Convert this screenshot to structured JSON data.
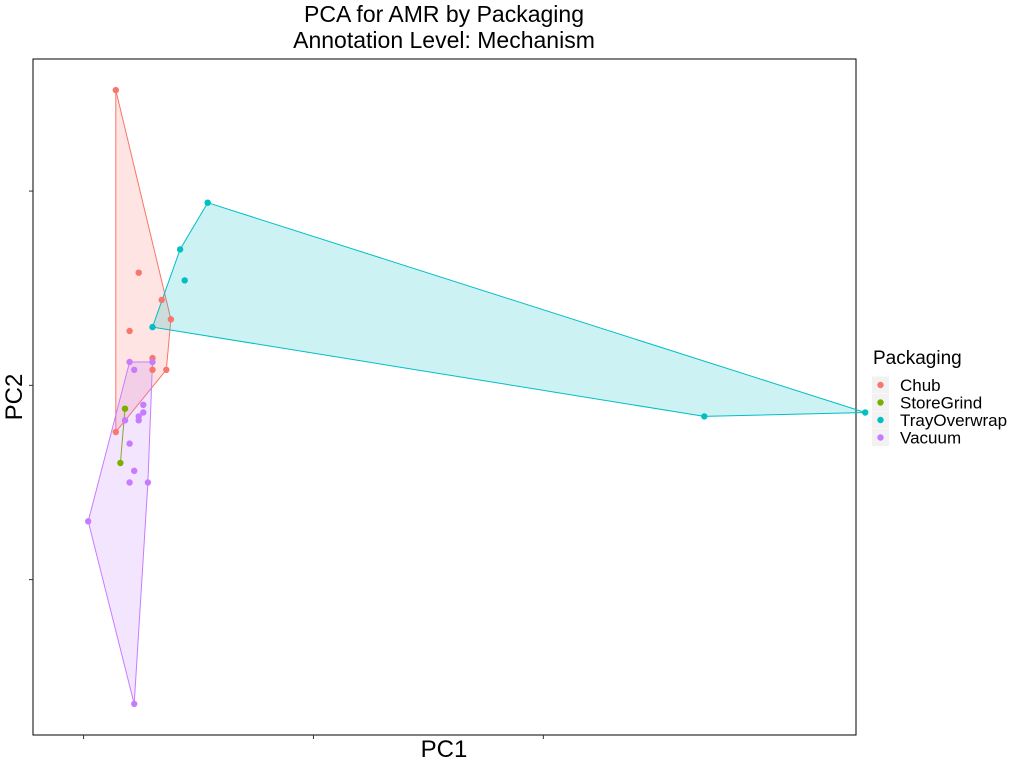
{
  "chart_data": {
    "type": "scatter",
    "title": "PCA for AMR by Packaging",
    "subtitle": "Annotation Level: Mechanism",
    "xlabel": "PC1",
    "ylabel": "PC2",
    "tick_labels_visible": false,
    "grid": false,
    "legend_title": "Packaging",
    "legend_position": "right",
    "hull": true,
    "xlim": [
      -0.11,
      1.68
    ],
    "ylim": [
      -0.9,
      0.84
    ],
    "xticks": [
      0.0,
      0.5,
      1.0
    ],
    "yticks": [
      -0.5,
      0.0,
      0.5
    ],
    "series": [
      {
        "name": "Chub",
        "color": "#F8766D",
        "x": [
          0.07,
          0.12,
          0.1,
          0.17,
          0.19,
          0.15,
          0.15,
          0.18,
          0.07
        ],
        "y": [
          0.76,
          0.29,
          0.14,
          0.22,
          0.17,
          0.07,
          0.04,
          0.04,
          -0.12
        ]
      },
      {
        "name": "StoreGrind",
        "color": "#7CAE00",
        "x": [
          0.09,
          0.08
        ],
        "y": [
          -0.06,
          -0.2
        ]
      },
      {
        "name": "TrayOverwrap",
        "color": "#00BFC4",
        "x": [
          0.27,
          0.21,
          0.22,
          0.15,
          1.35,
          1.7
        ],
        "y": [
          0.47,
          0.35,
          0.27,
          0.15,
          -0.08,
          -0.07
        ]
      },
      {
        "name": "Vacuum",
        "color": "#C77CFF",
        "x": [
          0.1,
          0.11,
          0.15,
          0.13,
          0.09,
          0.12,
          0.13,
          0.12,
          0.1,
          0.11,
          0.14,
          0.1,
          0.01,
          0.11
        ],
        "y": [
          0.06,
          0.04,
          0.06,
          -0.05,
          -0.09,
          -0.08,
          -0.07,
          -0.09,
          -0.15,
          -0.22,
          -0.25,
          -0.25,
          -0.35,
          -0.82
        ]
      }
    ]
  }
}
